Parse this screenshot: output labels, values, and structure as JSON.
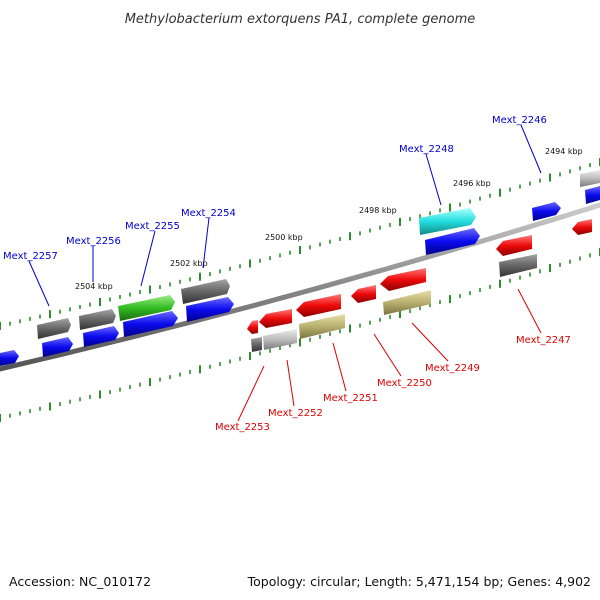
{
  "title": "Methylobacterium extorquens PA1, complete genome",
  "footer": {
    "accession": "Accession: NC_010172",
    "topology": "Topology: circular; Length: 5,471,154 bp; Genes: 4,902"
  },
  "colors": {
    "forward_label": "#0000cc",
    "reverse_label": "#dd0000",
    "backbone": "#8a8a8a",
    "tick": "#2e8b2e",
    "gene_blue": "#0a0aee",
    "gene_red": "#ee0a0a",
    "gene_gray": "#666666",
    "gene_lightgray": "#bbbbbb",
    "gene_green": "#33bb22",
    "gene_cyan": "#22dddd",
    "gene_khaki": "#b8b070"
  },
  "scale_labels": [
    "2494 kbp",
    "2496 kbp",
    "2498 kbp",
    "2500 kbp",
    "2502 kbp",
    "2504 kbp"
  ],
  "forward_gene_labels": [
    "Mext_2246",
    "Mext_2248",
    "Mext_2254",
    "Mext_2255",
    "Mext_2256",
    "Mext_2257"
  ],
  "reverse_gene_labels": [
    "Mext_2247",
    "Mext_2249",
    "Mext_2250",
    "Mext_2251",
    "Mext_2252",
    "Mext_2253"
  ]
}
